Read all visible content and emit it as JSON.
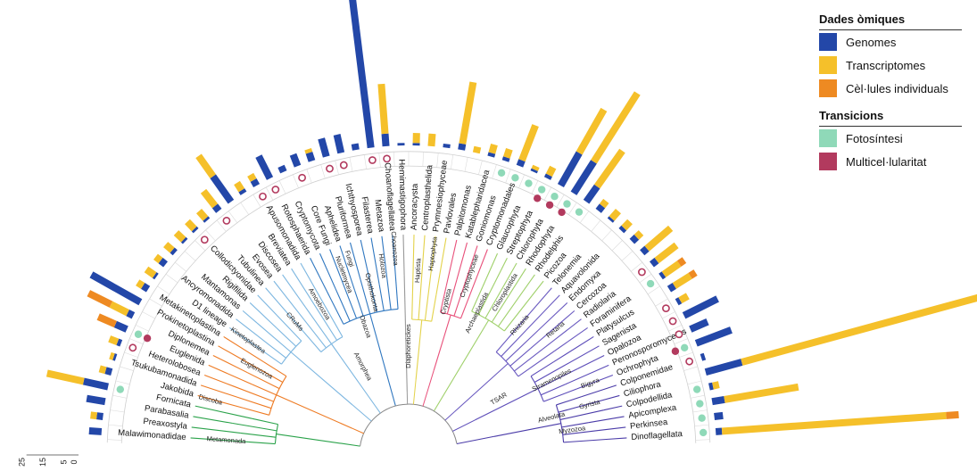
{
  "legend": {
    "omics_title": "Dades òmiques",
    "omics": [
      {
        "label": "Genomes",
        "color": "#2347a8"
      },
      {
        "label": "Transcriptomes",
        "color": "#f5c02a"
      },
      {
        "label": "Cèl·lules individuals",
        "color": "#ee8a22"
      }
    ],
    "transitions_title": "Transicions",
    "transitions": [
      {
        "label": "Fotosíntesi",
        "color": "#8fd9b8"
      },
      {
        "label": "Multicel·lularitat",
        "color": "#b23a5e"
      }
    ]
  },
  "axis_ticks": [
    "0",
    "5",
    "15",
    "25"
  ],
  "groups": [
    {
      "name": "Metamonada",
      "color": "#2aa24a",
      "taxa": [
        "Malawimonadidae",
        "Preaxostyla",
        "Parabasalia",
        "Fornicata"
      ]
    },
    {
      "name": "Discoba",
      "color": "#ee7a22",
      "taxa": [
        "Jakobida",
        "Tsukubamonadida",
        "Heterolobosea",
        "Euglenida",
        "Diplonemea",
        "Prokinetoplastina",
        "Metakinetoplastina"
      ]
    },
    {
      "name": "CRuMs",
      "color": "#7cb6e0",
      "taxa": [
        "D1 lineage",
        "Ancyromonadida",
        "Mantamonas",
        "Rigifilida",
        "Collodictyonidae"
      ]
    },
    {
      "name": "Amoebozoa",
      "color": "#7cb6e0",
      "taxa": [
        "Tubulinea",
        "Evosea",
        "Discosea",
        "Breviatea",
        "Apusomonadida"
      ]
    },
    {
      "name": "Opisthokonta",
      "color": "#2f77c0",
      "taxa": [
        "Rotosphaerida",
        "Cryptomycota",
        "Core Fungi",
        "Aphelidea",
        "Pluriformea",
        "Ichthyosporea",
        "Filasterea",
        "Metazoa",
        "Choanoflagellatea"
      ]
    },
    {
      "name": "Hemimastigophora",
      "color": "#999999",
      "taxa": [
        "Hemimastigophora"
      ]
    },
    {
      "name": "Haptista",
      "color": "#e3d24a",
      "taxa": [
        "Ancoracysta",
        "Centroplasthelida",
        "Prymnesiophyceae",
        "Pavlovales"
      ]
    },
    {
      "name": "Cryptista",
      "color": "#e8507a",
      "taxa": [
        "Palpitomonas",
        "Katablepharidacea",
        "Goniomonas",
        "Cryptomonadales"
      ]
    },
    {
      "name": "Archaeplastida",
      "color": "#9fd06a",
      "taxa": [
        "Glaucophyta",
        "Streptophyta",
        "Chlorophyta",
        "Rhodophyta",
        "Rhodelphis",
        "Picozoa"
      ]
    },
    {
      "name": "Rhizaria",
      "color": "#6a5ac0",
      "taxa": [
        "Telonemia",
        "Aquavolonida",
        "Endomyxa",
        "Cercozoa",
        "Radiolaria",
        "Foraminifera"
      ]
    },
    {
      "name": "Stramenopiles",
      "color": "#5b4bb8",
      "taxa": [
        "Platysulcus",
        "Sagenista",
        "Opalozoa",
        "Peronosporomycetes",
        "Ochrophyta"
      ]
    },
    {
      "name": "Alveolata",
      "color": "#4a3ba8",
      "taxa": [
        "Colponemidae",
        "Ciliophora",
        "Colpodellida",
        "Apicomplexa",
        "Perkinsea",
        "Dinoflagellata"
      ]
    }
  ],
  "clade_labels": [
    "Metamonada",
    "Discoba",
    "Euglenozoa",
    "Kinetoplastea",
    "CRuMs",
    "Amorphea",
    "Obazoa",
    "Amoebozoa",
    "Opisthokonta",
    "Holozoa",
    "Choanozoa",
    "Nucletmycea",
    "Fungi",
    "Diaphoretickes",
    "Haptista",
    "Haptophyta",
    "Cryptista",
    "Cryptophyceae",
    "Archaeplastida",
    "Chloroplastida",
    "Rhizaria",
    "Retaria",
    "TSAR",
    "Stramenopiles",
    "Bigyra",
    "Gyrista",
    "Alveolata",
    "Myzozoa"
  ],
  "omics_values": [
    [
      1,
      0,
      0
    ],
    [
      0.5,
      0.5,
      0
    ],
    [
      1.5,
      0,
      0
    ],
    [
      2,
      3,
      0
    ],
    [
      0.5,
      0.5,
      0
    ],
    [
      0.2,
      0.3,
      0
    ],
    [
      0.3,
      0.7,
      0
    ],
    [
      1,
      0,
      1.5
    ],
    [
      0.5,
      1.5,
      2
    ],
    [
      4.5,
      0,
      0
    ],
    [
      0.5,
      0.5,
      0
    ],
    [
      0.2,
      0.8,
      0
    ],
    [
      0.5,
      0.5,
      0
    ],
    [
      0.3,
      0.7,
      0
    ],
    [
      0.2,
      0.8,
      0
    ],
    [
      0.2,
      0.8,
      0
    ],
    [
      0.2,
      0.8,
      0
    ],
    [
      0.5,
      1.5,
      0
    ],
    [
      2.5,
      2,
      0
    ],
    [
      0.3,
      0.7,
      0
    ],
    [
      0.5,
      0.5,
      0
    ],
    [
      2,
      0,
      0
    ],
    [
      0.5,
      0,
      0
    ],
    [
      1,
      0,
      0
    ],
    [
      0.7,
      0.3,
      0
    ],
    [
      1.5,
      0,
      0
    ],
    [
      1.5,
      0,
      0
    ],
    [
      0.5,
      0,
      0
    ],
    [
      15,
      0,
      0
    ],
    [
      1,
      4,
      0
    ],
    [
      0.2,
      0,
      0
    ],
    [
      0.2,
      0.8,
      0
    ],
    [
      0,
      1,
      0
    ],
    [
      0.3,
      0,
      0
    ],
    [
      0.5,
      5,
      0
    ],
    [
      0,
      0.5,
      0
    ],
    [
      0.3,
      0.7,
      0
    ],
    [
      0.3,
      0.7,
      0
    ],
    [
      0.5,
      3,
      0
    ],
    [
      0.2,
      0.3,
      0
    ],
    [
      0.3,
      0.7,
      0
    ],
    [
      3,
      4,
      0
    ],
    [
      3,
      6.5,
      0
    ],
    [
      1.5,
      3.5,
      0
    ],
    [
      0.5,
      0.5,
      0
    ],
    [
      0.2,
      0.8,
      0
    ],
    [
      0.3,
      0.7,
      0
    ],
    [
      0.5,
      0.5,
      0
    ],
    [
      0.5,
      2.5,
      0
    ],
    [
      0.5,
      2,
      0
    ],
    [
      0.3,
      1.5,
      0.5
    ],
    [
      0.5,
      1.5,
      0.5
    ],
    [
      0.3,
      0.7,
      0
    ],
    [
      3,
      0,
      0
    ],
    [
      1.5,
      0,
      0
    ],
    [
      3,
      0,
      0
    ],
    [
      0.3,
      0,
      0
    ],
    [
      3,
      21,
      0.3
    ],
    [
      0.3,
      0.5,
      0
    ],
    [
      1,
      6,
      0
    ],
    [
      0.7,
      0,
      0
    ],
    [
      0.5,
      18,
      1
    ]
  ],
  "transition_markers": [
    {
      "taxon": "Fornicata",
      "type": "photosynthesis"
    },
    {
      "taxon": "Euglenida",
      "type": "photosynthesis_multicell"
    },
    {
      "taxon": "Heterolobosea",
      "type": "multicellularity"
    },
    {
      "taxon": "Collodictyonidae",
      "type": "multicellularity"
    },
    {
      "taxon": "Evosea",
      "type": "multicellularity"
    },
    {
      "taxon": "Rotosphaerida",
      "type": "multicellularity"
    },
    {
      "taxon": "Apusomonadida",
      "type": "multicellularity"
    },
    {
      "taxon": "Core Fungi",
      "type": "multicellularity"
    },
    {
      "taxon": "Pluriformea",
      "type": "multicellularity"
    },
    {
      "taxon": "Ichthyosporea",
      "type": "multicellularity"
    },
    {
      "taxon": "Metazoa",
      "type": "multicellularity"
    },
    {
      "taxon": "Choanoflagellatea",
      "type": "multicellularity"
    },
    {
      "taxon": "Goniomonas",
      "type": "photosynthesis"
    },
    {
      "taxon": "Cryptomonadales",
      "type": "photosynthesis"
    },
    {
      "taxon": "Glaucophyta",
      "type": "photosynthesis"
    },
    {
      "taxon": "Streptophyta",
      "type": "photosynthesis_multicell"
    },
    {
      "taxon": "Chlorophyta",
      "type": "photosynthesis_multicell"
    },
    {
      "taxon": "Rhodophyta",
      "type": "photosynthesis_multicell"
    },
    {
      "taxon": "Rhodelphis",
      "type": "photosynthesis"
    },
    {
      "taxon": "Foraminifera",
      "type": "photosynthesis"
    },
    {
      "taxon": "Radiolaria",
      "type": "multicellularity"
    },
    {
      "taxon": "Sagenista",
      "type": "multicellularity"
    },
    {
      "taxon": "Opalozoa",
      "type": "multicellularity"
    },
    {
      "taxon": "Peronosporomycetes",
      "type": "multicellularity"
    },
    {
      "taxon": "Ochrophyta",
      "type": "photosynthesis_multicell"
    },
    {
      "taxon": "Colponemidae",
      "type": "multicellularity"
    },
    {
      "taxon": "Colpodellida",
      "type": "photosynthesis"
    },
    {
      "taxon": "Apicomplexa",
      "type": "photosynthesis"
    },
    {
      "taxon": "Perkinsea",
      "type": "photosynthesis"
    },
    {
      "taxon": "Dinoflagellata",
      "type": "photosynthesis"
    }
  ]
}
